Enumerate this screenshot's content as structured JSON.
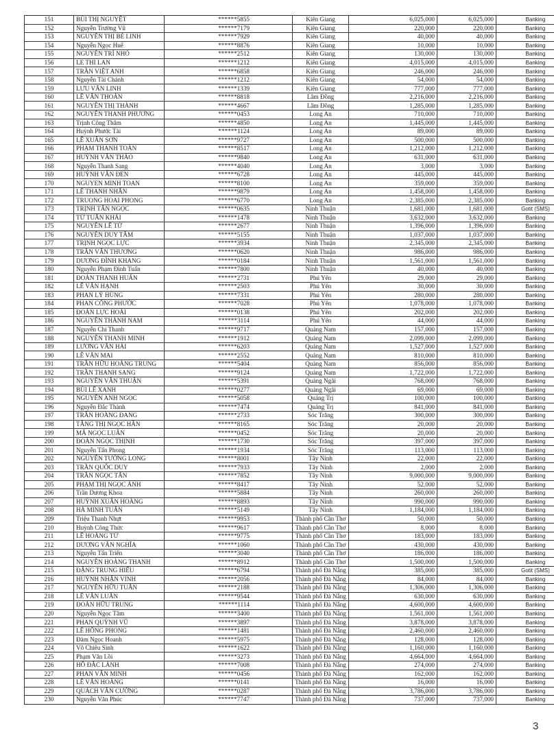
{
  "page_number": "3",
  "rows": [
    [
      "151",
      "BÙI THỊ NGUYỆT",
      "******5855",
      "Kiên Giang",
      "6,025,000",
      "6,025,000",
      "Banking"
    ],
    [
      "152",
      "Nguyễn Trường Vũ",
      "******7179",
      "Kiên Giang",
      "220,000",
      "220,000",
      "Banking"
    ],
    [
      "153",
      "NGUYỄN THỊ BÉ LINH",
      "******7929",
      "Kiên Giang",
      "40,000",
      "40,000",
      "Banking"
    ],
    [
      "154",
      "Nguyễn Ngọc Huế",
      "******8876",
      "Kiên Giang",
      "10,000",
      "10,000",
      "Banking"
    ],
    [
      "155",
      "NGUYỄN TRÍ NHỎ",
      "******2512",
      "Kiên Giang",
      "130,000",
      "130,000",
      "Banking"
    ],
    [
      "156",
      "LE THI LAN",
      "******1212",
      "Kiên Giang",
      "4,015,000",
      "4,015,000",
      "Banking"
    ],
    [
      "157",
      "TRẦN VIỆT ANH",
      "******6858",
      "Kiên Giang",
      "246,000",
      "246,000",
      "Banking"
    ],
    [
      "158",
      "Nguyễn Tài Chánh",
      "******1212",
      "Kiên Giang",
      "54,000",
      "54,000",
      "Banking"
    ],
    [
      "159",
      "LƯU VĂN LINH",
      "******1339",
      "Kiên Giang",
      "777,000",
      "777,000",
      "Banking"
    ],
    [
      "160",
      "LÊ VĂN THOÁN",
      "******8818",
      "Lâm Đồng",
      "2,216,000",
      "2,216,000",
      "Banking"
    ],
    [
      "161",
      "NGUYỄN THỊ THÀNH",
      "******4667",
      "Lâm Đồng",
      "1,285,000",
      "1,285,000",
      "Banking"
    ],
    [
      "162",
      "NGUYÊN THANH PHƯƠNG",
      "******0453",
      "Long An",
      "710,000",
      "710,000",
      "Banking"
    ],
    [
      "163",
      "Trịnh Công Thâm",
      "******4850",
      "Long An",
      "1,445,000",
      "1,445,000",
      "Banking"
    ],
    [
      "164",
      "Huỳnh Phước Tài",
      "******1124",
      "Long An",
      "89,000",
      "89,000",
      "Banking"
    ],
    [
      "165",
      "LÊ XUÂN SƠN",
      "******9727",
      "Long An",
      "500,000",
      "500,000",
      "Banking"
    ],
    [
      "166",
      "PHẠM THANH TOÀN",
      "******8517",
      "Long An",
      "1,212,000",
      "1,212,000",
      "Banking"
    ],
    [
      "167",
      "HUỲNH VĂN THẢO",
      "******9840",
      "Long An",
      "631,000",
      "631,000",
      "Banking"
    ],
    [
      "168",
      "Nguyễn Thanh Sang",
      "******4040",
      "Long An",
      "3,000",
      "3,000",
      "Banking"
    ],
    [
      "169",
      "HUỲNH VĂN ĐEN",
      "******6728",
      "Long An",
      "445,000",
      "445,000",
      "Banking"
    ],
    [
      "170",
      "NGUYEN MINH TOAN",
      "******8100",
      "Long An",
      "359,000",
      "359,000",
      "Banking"
    ],
    [
      "171",
      "LÊ THANH NHÂN",
      "******9879",
      "Long An",
      "1,458,000",
      "1,458,000",
      "Banking"
    ],
    [
      "172",
      "TRUONG HOAI PHONG",
      "******6770",
      "Long An",
      "2,385,000",
      "2,385,000",
      "Banking"
    ],
    [
      "173",
      "TRỊNH TẤN NGỌC",
      "******0635",
      "Ninh Thuận",
      "1,681,000",
      "1,681,000",
      "Gotit (SMS)"
    ],
    [
      "174",
      "TỪ TUẤN KHẢI",
      "******1478",
      "Ninh Thuận",
      "3,632,000",
      "3,632,000",
      "Banking"
    ],
    [
      "175",
      "NGUYỄN LÊ TỨ",
      "******2677",
      "Ninh Thuận",
      "1,396,000",
      "1,396,000",
      "Banking"
    ],
    [
      "176",
      "NGUYỄN DUY TÂM",
      "******5155",
      "Ninh Thuận",
      "1,037,000",
      "1,037,000",
      "Banking"
    ],
    [
      "177",
      "TRỊNH NGỌC LỰC",
      "******3934",
      "Ninh Thuận",
      "2,345,000",
      "2,345,000",
      "Banking"
    ],
    [
      "178",
      "TRẦN VĂN THƯƠNG",
      "******0620",
      "Ninh Thuận",
      "986,000",
      "986,000",
      "Banking"
    ],
    [
      "179",
      "DƯƠNG ĐÌNH KHANG",
      "******0184",
      "Ninh Thuận",
      "1,561,000",
      "1,561,000",
      "Banking"
    ],
    [
      "180",
      "Nguyễn Phạm Đình Tuấn",
      "******7800",
      "Ninh Thuận",
      "40,000",
      "40,000",
      "Banking"
    ],
    [
      "181",
      "ĐOÀN THANH HUẤN",
      "******2731",
      "Phú Yên",
      "29,000",
      "29,000",
      "Banking"
    ],
    [
      "182",
      "LÊ VĂN HẠNH",
      "******2503",
      "Phú Yên",
      "30,000",
      "30,000",
      "Banking"
    ],
    [
      "183",
      "PHAN LÝ HÙNG",
      "******7331",
      "Phú Yên",
      "280,000",
      "280,000",
      "Banking"
    ],
    [
      "184",
      "PHAN CÔNG PHƯỚC",
      "******7028",
      "Phú Yên",
      "1,078,000",
      "1,078,000",
      "Banking"
    ],
    [
      "185",
      "ĐOÀN LỰC HOÀI",
      "******0138",
      "Phú Yên",
      "202,000",
      "202,000",
      "Banking"
    ],
    [
      "186",
      "NGUYỄN THÀNH NAM",
      "******3114",
      "Phú Yên",
      "44,000",
      "44,000",
      "Banking"
    ],
    [
      "187",
      "Nguyễn Chí Thanh",
      "******9717",
      "Quảng Nam",
      "157,000",
      "157,000",
      "Banking"
    ],
    [
      "188",
      "NGUYỄN THANH MINH",
      "******1912",
      "Quảng Nam",
      "2,099,000",
      "2,099,000",
      "Banking"
    ],
    [
      "189",
      "LƯƠNG VĂN HẢI",
      "******6203",
      "Quảng Nam",
      "1,527,000",
      "1,527,000",
      "Banking"
    ],
    [
      "190",
      "LÊ VĂN MAI",
      "******2552",
      "Quảng Nam",
      "810,000",
      "810,000",
      "Banking"
    ],
    [
      "191",
      "TRẦN HỮU HOÀNG TRUNG",
      "******5404",
      "Quảng Nam",
      "856,000",
      "856,000",
      "Banking"
    ],
    [
      "192",
      "TRẦN THANH SANG",
      "******9124",
      "Quảng Nam",
      "1,722,000",
      "1,722,000",
      "Banking"
    ],
    [
      "193",
      "NGUYỄN VĂN THUẬN",
      "******5391",
      "Quảng Ngãi",
      "768,000",
      "768,000",
      "Banking"
    ],
    [
      "194",
      "BÙI LÊ XANH",
      "******0277",
      "Quảng Ngãi",
      "69,000",
      "69,000",
      "Banking"
    ],
    [
      "195",
      "NGUYỄN ANH NGỌC",
      "******5058",
      "Quảng Trị",
      "100,000",
      "100,000",
      "Banking"
    ],
    [
      "196",
      "Nguyễn Đắc Thành",
      "******7474",
      "Quảng Trị",
      "841,000",
      "841,000",
      "Banking"
    ],
    [
      "197",
      "TRẦN HOÀNG ĐANG",
      "******2733",
      "Sóc Trăng",
      "300,000",
      "300,000",
      "Banking"
    ],
    [
      "198",
      "TĂNG THỊ NGỌC HÂN",
      "******8165",
      "Sóc Trăng",
      "20,000",
      "20,000",
      "Banking"
    ],
    [
      "199",
      "MÃ NGỌC LUÂN",
      "******0452",
      "Sóc Trăng",
      "20,000",
      "20,000",
      "Banking"
    ],
    [
      "200",
      "ĐOÀN NGỌC THỊNH",
      "******1730",
      "Sóc Trăng",
      "397,000",
      "397,000",
      "Banking"
    ],
    [
      "201",
      "Nguyễn Tấn Phong",
      "******1934",
      "Sóc Trăng",
      "113,000",
      "113,000",
      "Banking"
    ],
    [
      "202",
      "NGUYỄN TƯỜNG LONG",
      "******8001",
      "Tây Ninh",
      "22,000",
      "22,000",
      "Banking"
    ],
    [
      "203",
      "TRẦN QUỐC DUY",
      "******7933",
      "Tây Ninh",
      "2,000",
      "2,000",
      "Banking"
    ],
    [
      "204",
      "TRẦN NGỌC TẤN",
      "******7852",
      "Tây Ninh",
      "9,000,000",
      "9,000,000",
      "Banking"
    ],
    [
      "205",
      "PHẠM THỊ NGỌC ÁNH",
      "******8417",
      "Tây Ninh",
      "52,000",
      "52,000",
      "Banking"
    ],
    [
      "206",
      "Trần Dương Khoa",
      "******5884",
      "Tây Ninh",
      "260,000",
      "260,000",
      "Banking"
    ],
    [
      "207",
      "HUỲNH XUÂN HOÀNG",
      "******8893",
      "Tây Ninh",
      "990,000",
      "990,000",
      "Banking"
    ],
    [
      "208",
      "HÀ MINH TUẤN",
      "******5149",
      "Tây Ninh",
      "1,184,000",
      "1,184,000",
      "Banking"
    ],
    [
      "209",
      "Triệu Thanh Nhựt",
      "******9953",
      "Thành phố Cần Thơ",
      "50,000",
      "50,000",
      "Banking"
    ],
    [
      "210",
      "Huỳnh Công Thức",
      "******9617",
      "Thành phố Cần Thơ",
      "8,000",
      "8,000",
      "Banking"
    ],
    [
      "211",
      "LÊ HOÀNG TỬ",
      "******9775",
      "Thành phố Cần Thơ",
      "183,000",
      "183,000",
      "Banking"
    ],
    [
      "212",
      "DƯƠNG VĂN NGHĨA",
      "******1060",
      "Thành phố Cần Thơ",
      "430,000",
      "430,000",
      "Banking"
    ],
    [
      "213",
      "Nguyễn Tấn Triển",
      "******3040",
      "Thành phố Cần Thơ",
      "186,000",
      "186,000",
      "Banking"
    ],
    [
      "214",
      "NGUYỄN HOÀNG THANH",
      "******8912",
      "Thành phố Cần Thơ",
      "1,500,000",
      "1,500,000",
      "Banking"
    ],
    [
      "215",
      "ĐẶNG TRUNG HIẾU",
      "******6794",
      "Thành phố Đà Nẵng",
      "385,000",
      "385,000",
      "Gotit (SMS)"
    ],
    [
      "216",
      "HUỲNH NHẬN VINH",
      "******2056",
      "Thành phố Đà Nẵng",
      "84,000",
      "84,000",
      "Banking"
    ],
    [
      "217",
      "NGUYỄN HỮU TUÂN",
      "******2188",
      "Thành phố Đà Nẵng",
      "1,306,000",
      "1,306,000",
      "Banking"
    ],
    [
      "218",
      "LÊ VĂN LUÂN",
      "******9544",
      "Thành phố Đà Nẵng",
      "630,000",
      "630,000",
      "Banking"
    ],
    [
      "219",
      "ĐOÀN HỮU TRUNG",
      "******1114",
      "Thành phố Đà Nẵng",
      "4,600,000",
      "4,600,000",
      "Banking"
    ],
    [
      "220",
      "Nguyễn Ngọc Tâm",
      "******3400",
      "Thành phố Đà Nẵng",
      "1,561,000",
      "1,561,000",
      "Banking"
    ],
    [
      "221",
      "PHAN QUỲNH VŨ",
      "******3897",
      "Thành phố Đà Nẵng",
      "3,878,000",
      "3,878,000",
      "Banking"
    ],
    [
      "222",
      "LÊ HỒNG PHONG",
      "******1481",
      "Thành phố Đà Nẵng",
      "2,460,000",
      "2,460,000",
      "Banking"
    ],
    [
      "223",
      "Đàm Ngọc Hoanh",
      "******5975",
      "Thành phố Đà Nẵng",
      "128,000",
      "128,000",
      "Banking"
    ],
    [
      "224",
      "Võ Chiêu Sinh",
      "******1622",
      "Thành phố Đà Nẵng",
      "1,160,000",
      "1,160,000",
      "Banking"
    ],
    [
      "225",
      "Phạm Văn Lồi",
      "******3273",
      "Thành phố Đà Nẵng",
      "4,664,000",
      "4,664,000",
      "Banking"
    ],
    [
      "226",
      "HỒ ĐẮC LÀNH",
      "******7008",
      "Thành phố Đà Nẵng",
      "274,000",
      "274,000",
      "Banking"
    ],
    [
      "227",
      "PHAN VĂN MINH",
      "******0456",
      "Thành phố Đà Nẵng",
      "162,000",
      "162,000",
      "Banking"
    ],
    [
      "228",
      "LÊ VĂN HOÀNG",
      "******0141",
      "Thành phố Đà Nẵng",
      "16,000",
      "16,000",
      "Banking"
    ],
    [
      "229",
      "QUÁCH VĂN CƯỜNG",
      "******0287",
      "Thành phố Đà Nẵng",
      "3,786,000",
      "3,786,000",
      "Banking"
    ],
    [
      "230",
      "Nguyễn Văn Phúc",
      "******7747",
      "Thành phố Đà Nẵng",
      "737,000",
      "737,000",
      "Banking"
    ]
  ]
}
